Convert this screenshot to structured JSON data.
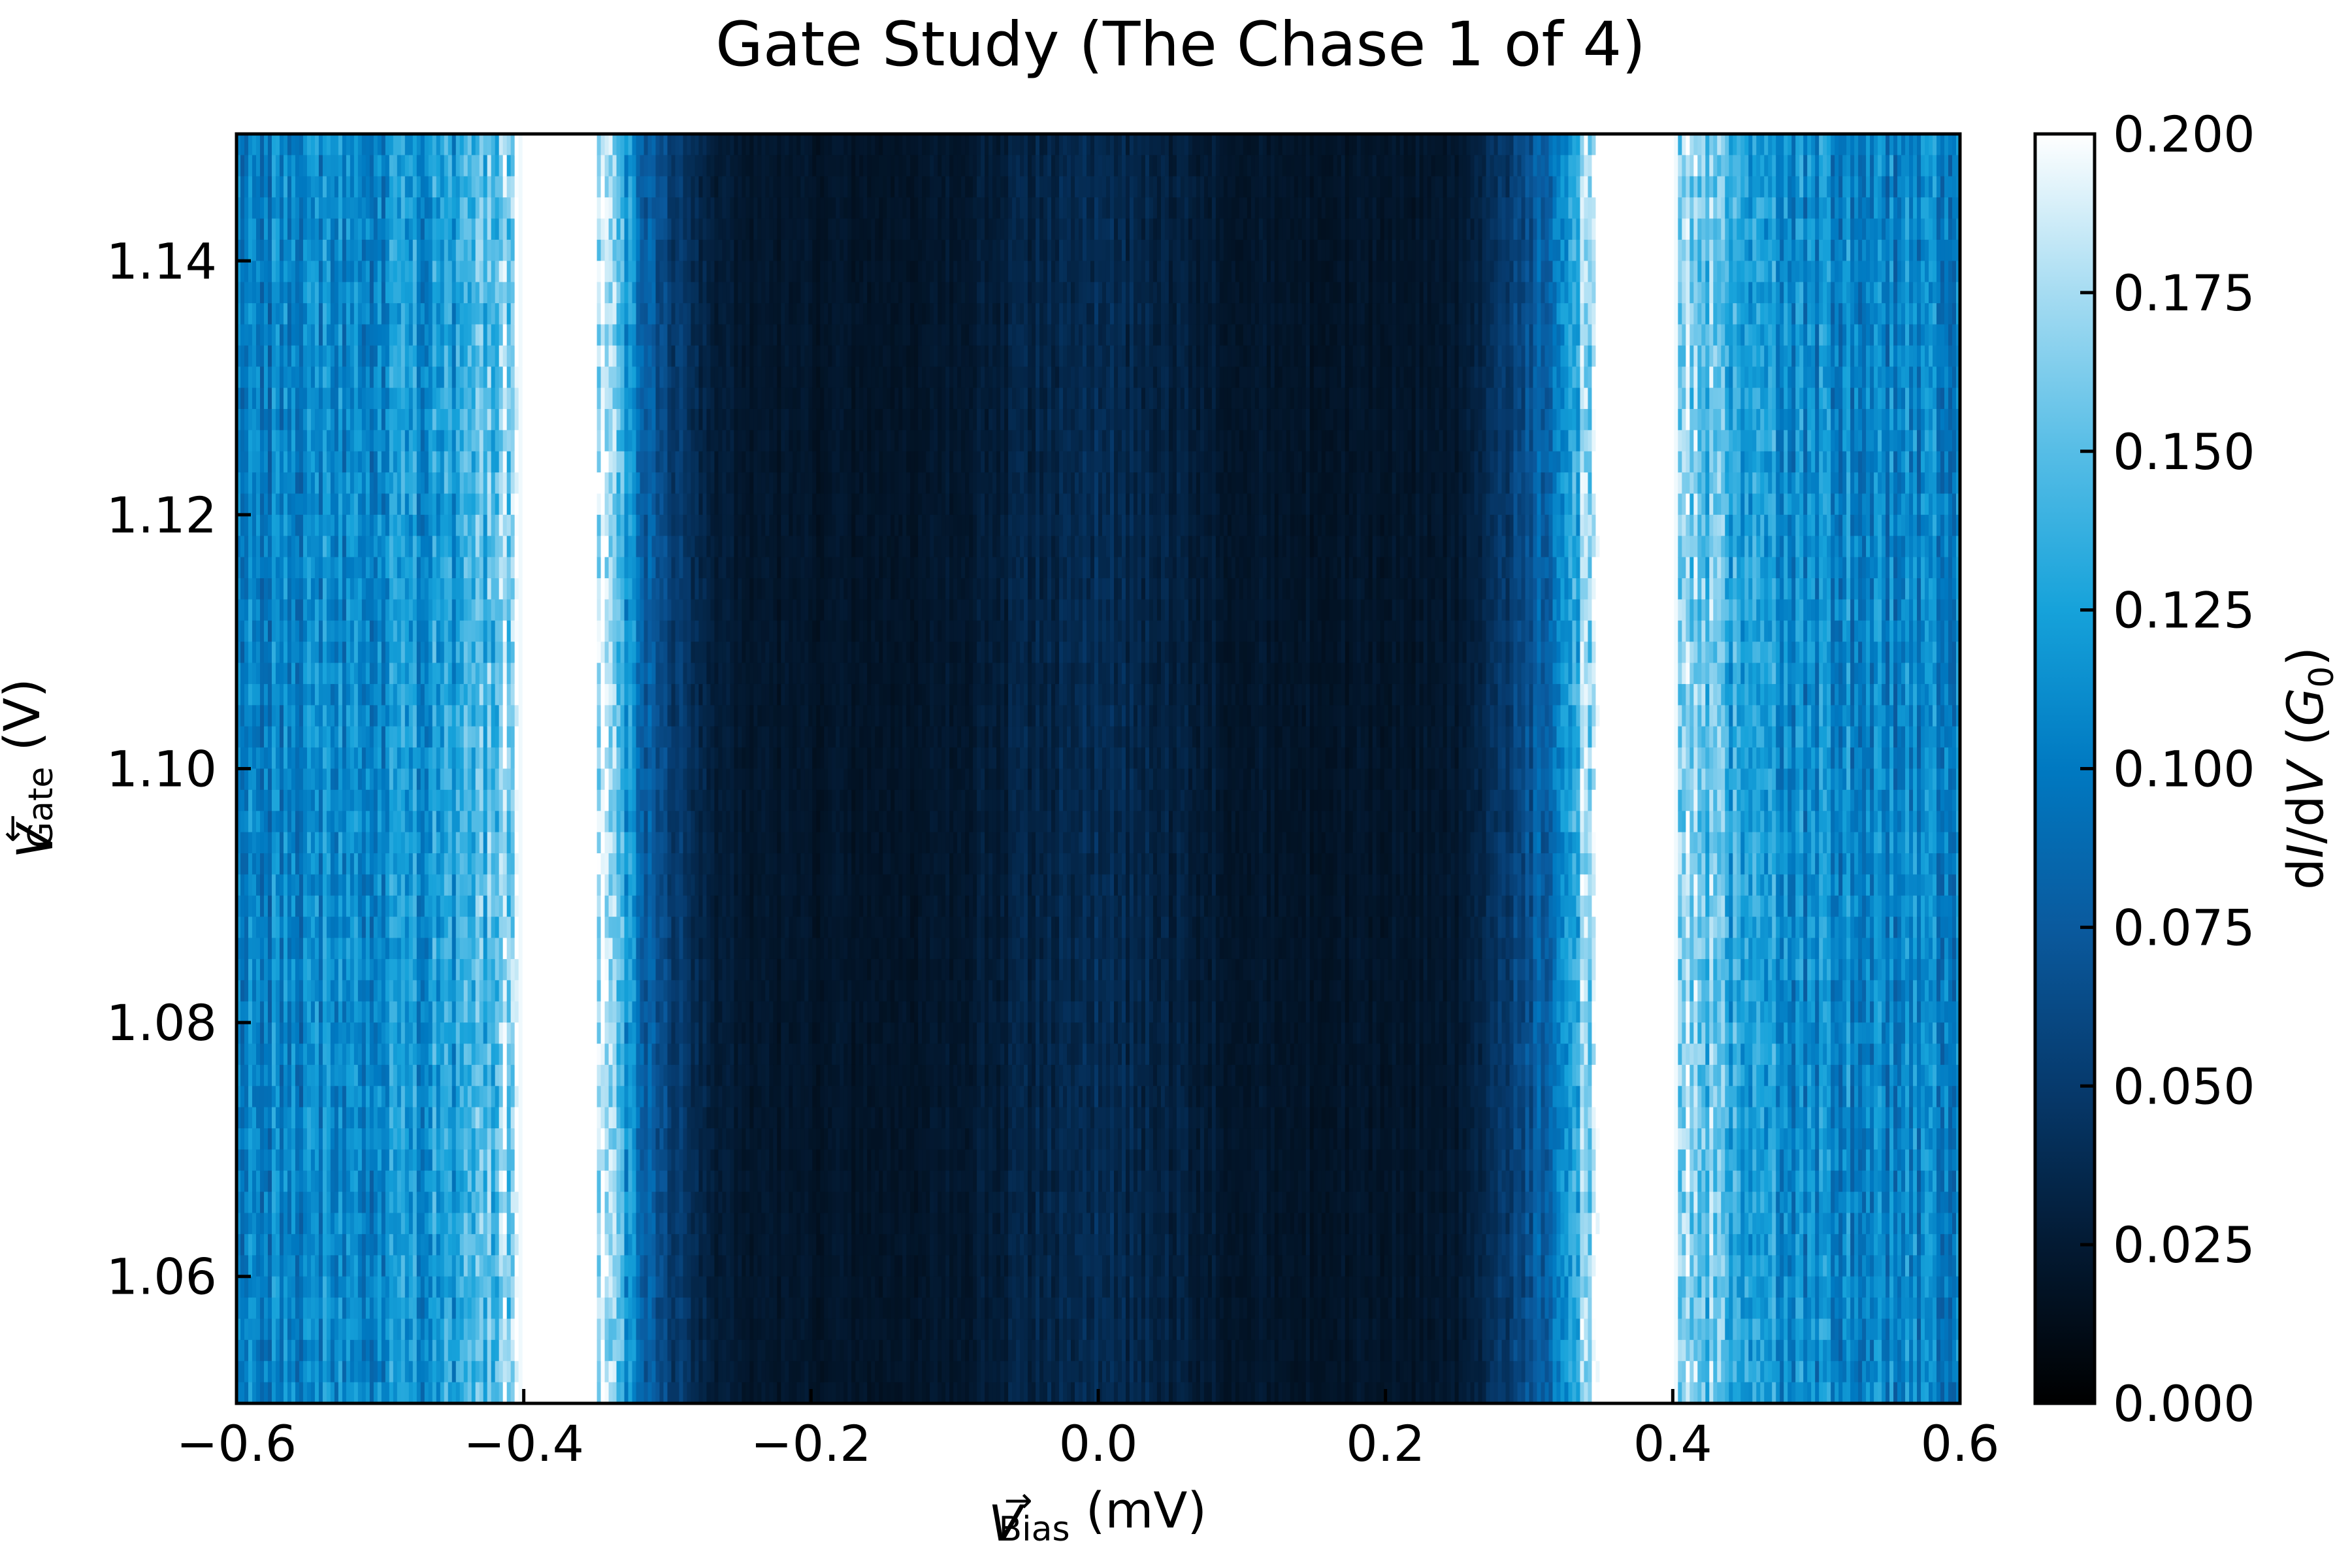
{
  "chart_data": {
    "type": "heatmap",
    "title": "Gate Study (The Chase 1 of 4)",
    "xlabel": {
      "symbol": "V",
      "arrow": "→",
      "subscript": "Bias",
      "unit": " (mV)"
    },
    "ylabel": {
      "symbol": "V",
      "arrow": "←",
      "subscript": "Gate",
      "unit": " (V)"
    },
    "colorbar_label": {
      "text_prefix": "d",
      "I": "I",
      "mid": "/d",
      "V": "V",
      "open": " (",
      "G": "G",
      "G_sub": "0",
      "close": ")"
    },
    "xlim": [
      -0.6,
      0.6
    ],
    "ylim": [
      1.05,
      1.15
    ],
    "x_ticks": [
      -0.6,
      -0.4,
      -0.2,
      0.0,
      0.2,
      0.4,
      0.6
    ],
    "x_tick_labels": [
      "−0.6",
      "−0.4",
      "−0.2",
      "0.0",
      "0.2",
      "0.4",
      "0.6"
    ],
    "y_ticks": [
      1.06,
      1.08,
      1.1,
      1.12,
      1.14
    ],
    "y_tick_labels": [
      "1.06",
      "1.08",
      "1.10",
      "1.12",
      "1.14"
    ],
    "color_range": [
      0.0,
      0.2
    ],
    "colorbar_ticks": [
      0.0,
      0.025,
      0.05,
      0.075,
      0.1,
      0.125,
      0.15,
      0.175,
      0.2
    ],
    "colorbar_tick_labels": [
      "0.000",
      "0.025",
      "0.050",
      "0.075",
      "0.100",
      "0.125",
      "0.150",
      "0.175",
      "0.200"
    ],
    "colormap": [
      "#000000",
      "#031a33",
      "#063a6d",
      "#0a5a9e",
      "#0079c1",
      "#16a2da",
      "#56bde6",
      "#a6dcf2",
      "#ffffff"
    ],
    "profile_x": [
      -0.6,
      -0.5,
      -0.45,
      -0.42,
      -0.4,
      -0.38,
      -0.35,
      -0.32,
      -0.3,
      -0.27,
      -0.25,
      -0.2,
      -0.15,
      -0.1,
      -0.05,
      0.0,
      0.05,
      0.1,
      0.15,
      0.2,
      0.25,
      0.27,
      0.3,
      0.32,
      0.35,
      0.38,
      0.4,
      0.42,
      0.45,
      0.5,
      0.6
    ],
    "profile_dIdV": [
      0.105,
      0.11,
      0.125,
      0.16,
      0.2,
      0.2,
      0.2,
      0.09,
      0.055,
      0.03,
      0.022,
      0.02,
      0.02,
      0.022,
      0.032,
      0.038,
      0.03,
      0.022,
      0.02,
      0.02,
      0.022,
      0.035,
      0.065,
      0.1,
      0.2,
      0.2,
      0.2,
      0.16,
      0.125,
      0.11,
      0.105
    ]
  }
}
